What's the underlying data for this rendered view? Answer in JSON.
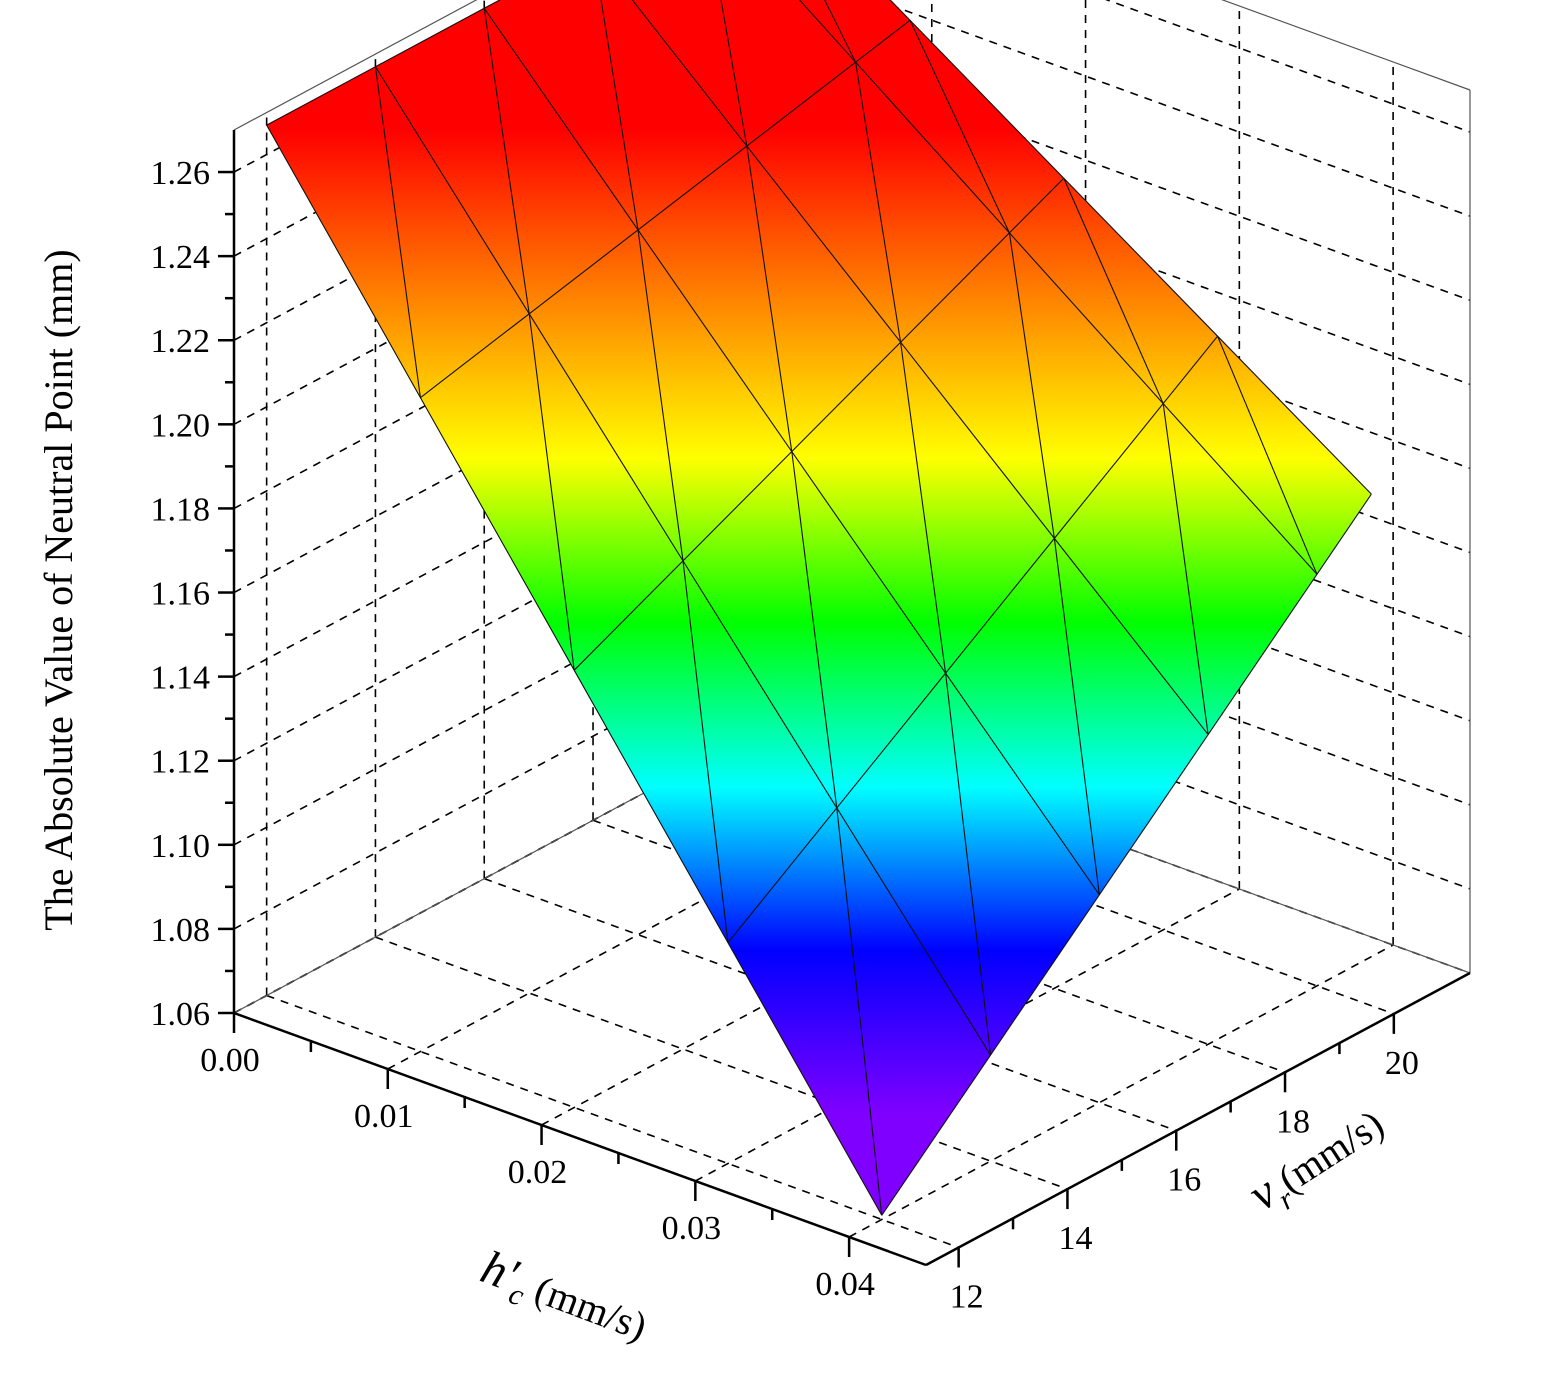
{
  "chart_data": {
    "type": "surface3d",
    "z_axis": {
      "label": "The Absolute Value of Neutral Point (mm)",
      "ticks": [
        "1.06",
        "1.08",
        "1.10",
        "1.12",
        "1.14",
        "1.16",
        "1.18",
        "1.20",
        "1.22",
        "1.24",
        "1.26"
      ],
      "range": [
        1.06,
        1.27
      ]
    },
    "h_axis": {
      "label_main": "h′",
      "label_sub": "c",
      "label_unit": " (mm/s)",
      "ticks": [
        "0.00",
        "0.01",
        "0.02",
        "0.03",
        "0.04"
      ],
      "range": [
        0.0,
        0.045
      ]
    },
    "v_axis": {
      "label_main": "v",
      "label_sub": "r",
      "label_unit": "(mm/s)",
      "ticks": [
        "12",
        "14",
        "16",
        "18",
        "20"
      ],
      "range": [
        11.4,
        21.4
      ]
    },
    "grid": true,
    "colormap": [
      "#8000ff",
      "#0000ff",
      "#00ffff",
      "#00ff00",
      "#ffff00",
      "#ff8000",
      "#ff0000"
    ],
    "surface": {
      "h_values": [
        0.0,
        0.01,
        0.02,
        0.03,
        0.04
      ],
      "v_values": [
        12,
        14,
        16,
        18,
        20,
        21
      ],
      "corner_values": {
        "h0_v12": 1.267,
        "h0_v21": 1.267,
        "h004_v12": 1.061,
        "h004_v21": 1.17
      }
    }
  }
}
